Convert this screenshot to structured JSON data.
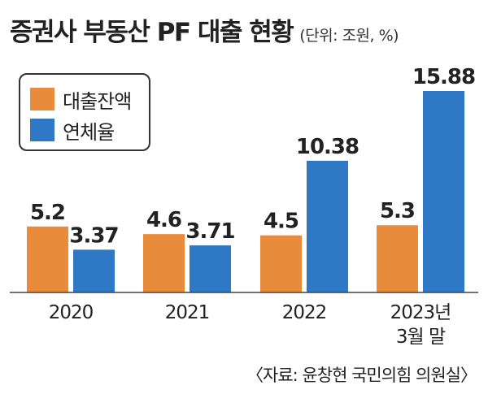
{
  "header": {
    "title": "증권사 부동산 PF 대출 현황",
    "unit": "(단위: 조원, %)"
  },
  "source": "〈자료: 윤창현 국민의힘 의원실〉",
  "colors": {
    "loan": "#E88C3C",
    "delinquency": "#2F78C6",
    "axis": "#444444"
  },
  "chart_data": {
    "type": "bar",
    "title": "증권사 부동산 PF 대출 현황",
    "categories": [
      [
        "2020"
      ],
      [
        "2021"
      ],
      [
        "2022"
      ],
      [
        "2023년",
        "3월 말"
      ]
    ],
    "series": [
      {
        "name": "대출잔액",
        "values": [
          5.2,
          4.6,
          4.5,
          5.3
        ],
        "labels": [
          "5.2",
          "4.6",
          "4.5",
          "5.3"
        ],
        "color": "#E88C3C"
      },
      {
        "name": "연체율",
        "values": [
          3.37,
          3.71,
          10.38,
          15.88
        ],
        "labels": [
          "3.37",
          "3.71",
          "10.38",
          "15.88"
        ],
        "color": "#2F78C6"
      }
    ],
    "ylim": [
      0,
      16.5
    ],
    "grid": false,
    "legend": "top-left"
  }
}
